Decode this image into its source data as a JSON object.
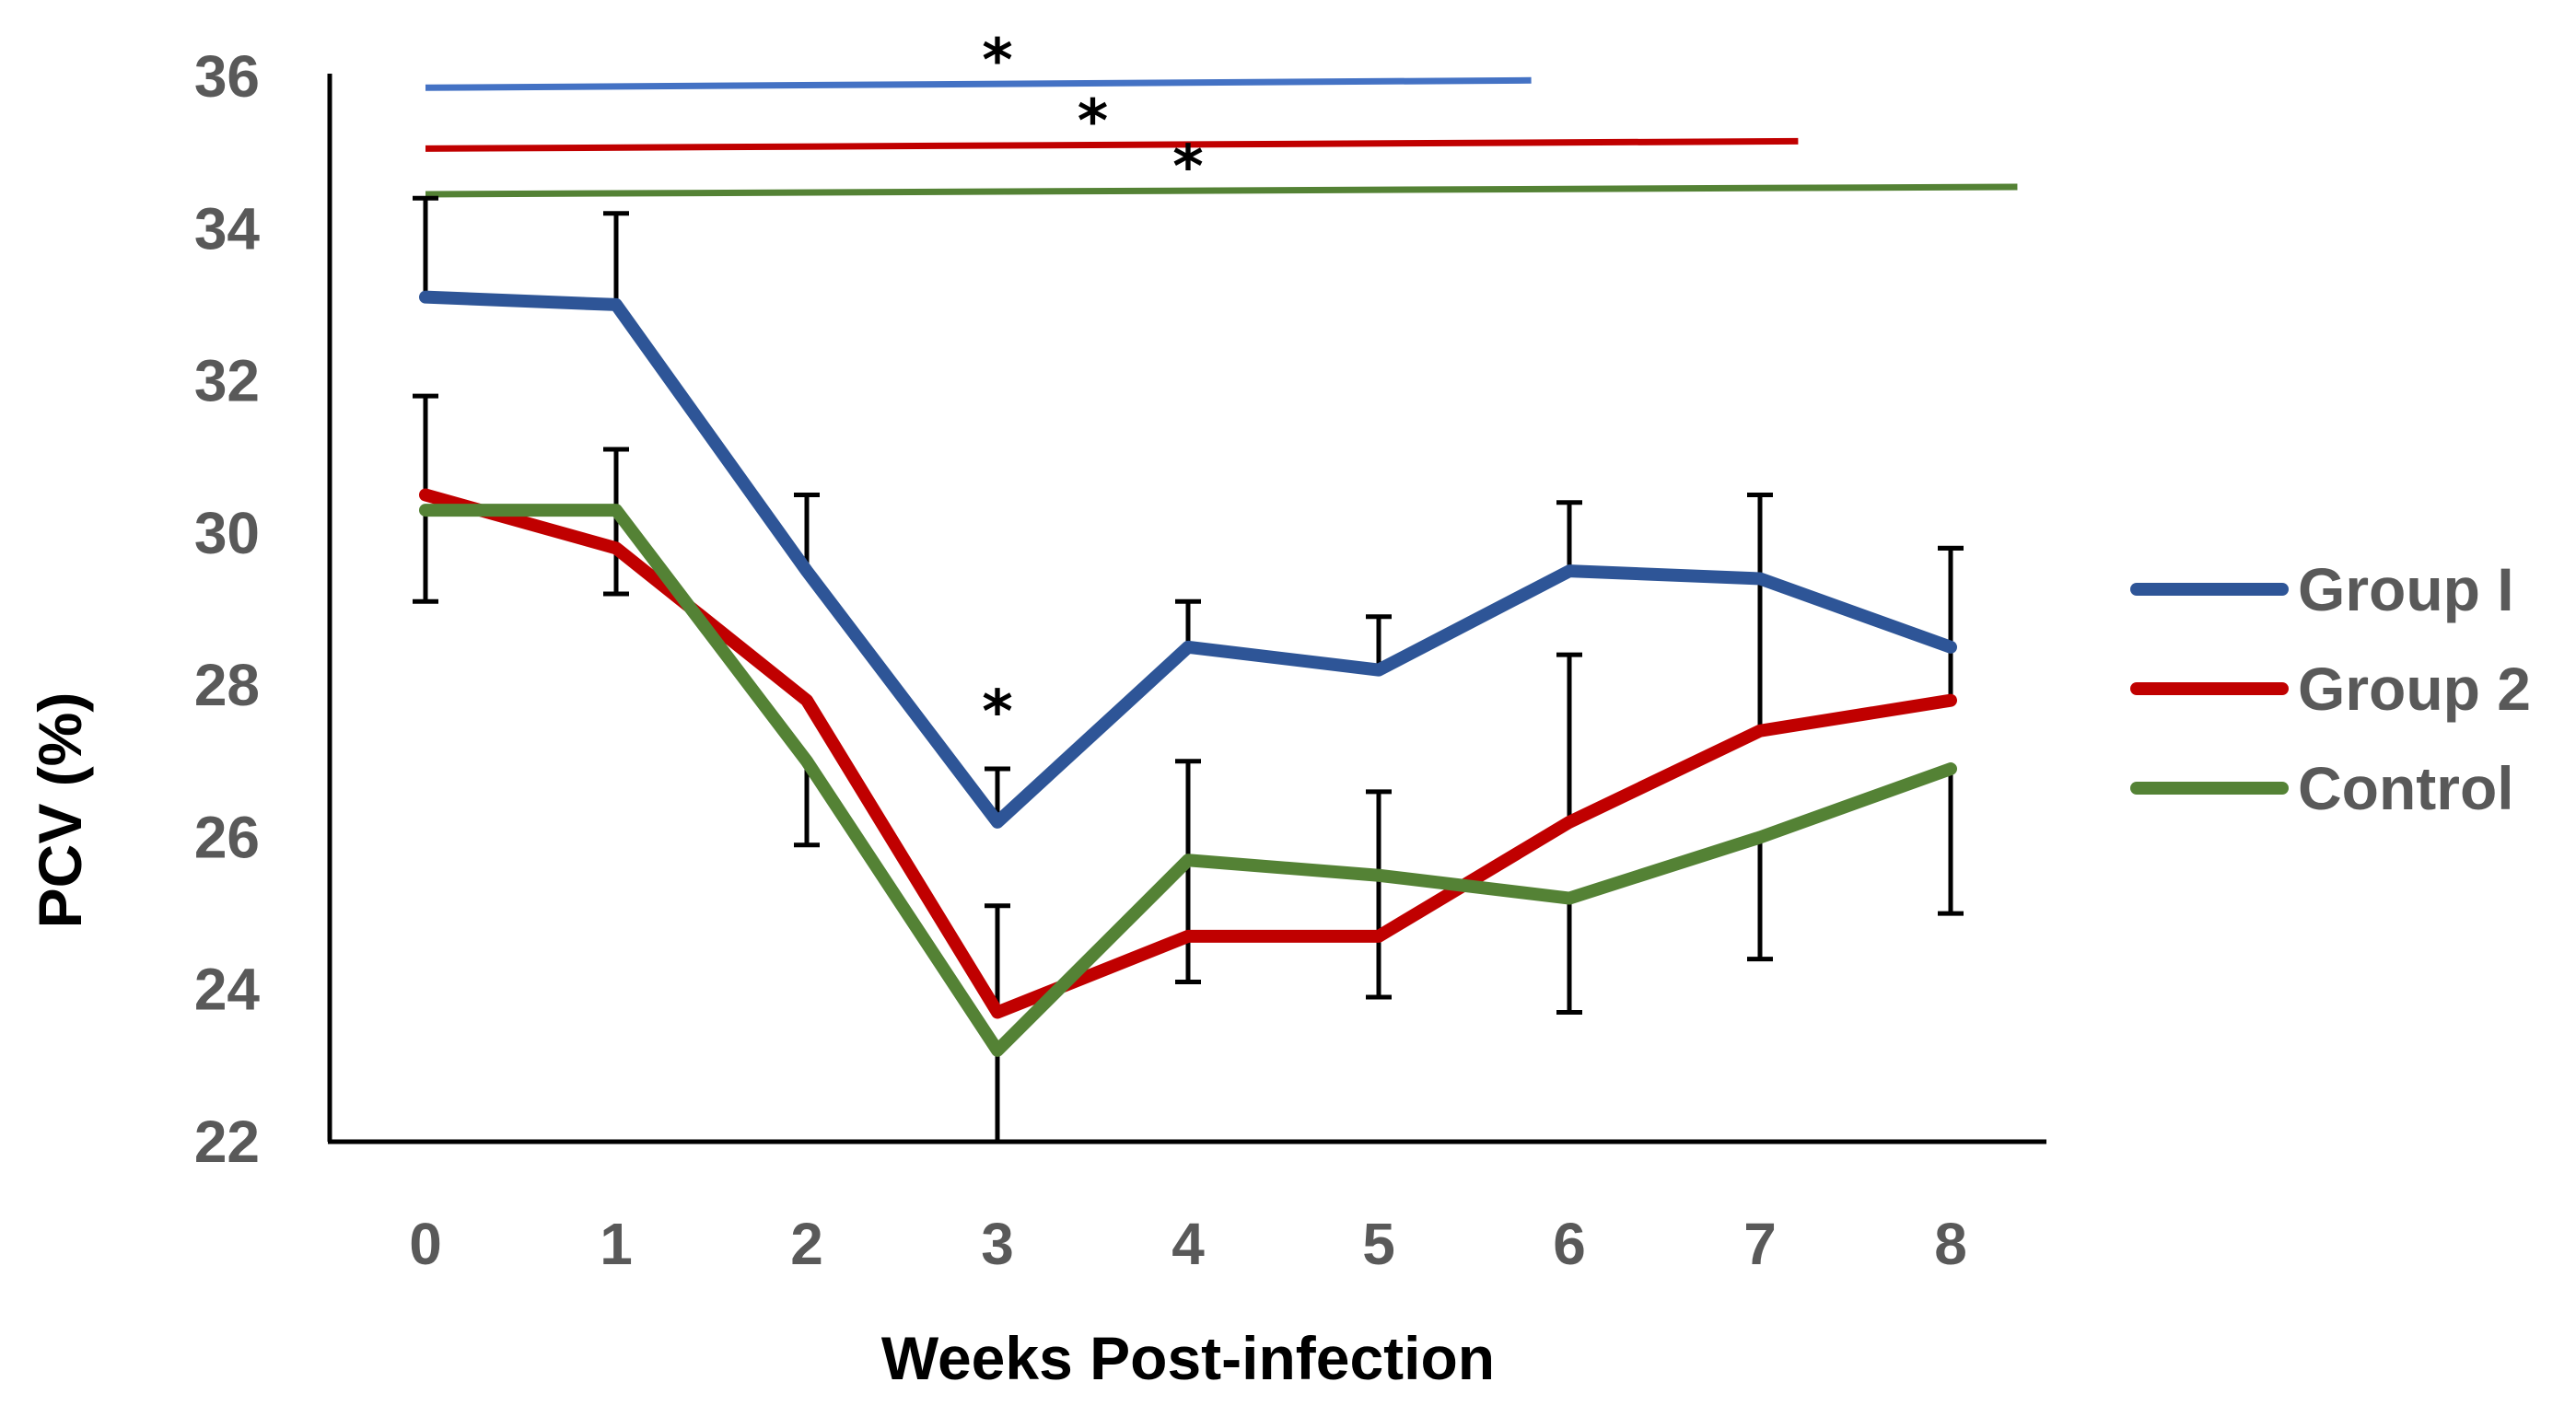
{
  "chart_data": {
    "type": "line",
    "title": "",
    "xlabel": "Weeks Post-infection",
    "ylabel": "PCV (%)",
    "x": [
      0,
      1,
      2,
      3,
      4,
      5,
      6,
      7,
      8
    ],
    "x_tick_labels": [
      "0",
      "1",
      "2",
      "3",
      "4",
      "5",
      "6",
      "7",
      "8"
    ],
    "ylim": [
      22,
      36
    ],
    "y_ticks": [
      22,
      24,
      26,
      28,
      30,
      32,
      34,
      36
    ],
    "y_tick_labels": [
      "22",
      "24",
      "26",
      "28",
      "30",
      "32",
      "34",
      "36"
    ],
    "grid": false,
    "legend_position": "right",
    "series": [
      {
        "name": "Group I",
        "color": "#2E5597",
        "values": [
          33.1,
          33.0,
          29.5,
          26.2,
          28.5,
          28.2,
          29.5,
          29.4,
          28.5
        ],
        "error_up": [
          1.3,
          1.2,
          1.0,
          0.7,
          0.6,
          0.7,
          0.9,
          1.1,
          1.3
        ]
      },
      {
        "name": "Group 2",
        "color": "#C00000",
        "values": [
          30.5,
          29.8,
          27.8,
          23.7,
          24.7,
          24.7,
          26.2,
          27.4,
          27.8
        ],
        "error_up": [
          1.3,
          1.3,
          0,
          1.4,
          2.3,
          1.9,
          2.2,
          3.1,
          2.0
        ]
      },
      {
        "name": "Control",
        "color": "#548235",
        "values": [
          30.3,
          30.3,
          27.0,
          23.2,
          25.7,
          25.5,
          25.2,
          26.0,
          26.9
        ],
        "error_down": [
          1.2,
          1.1,
          1.1,
          1.2,
          1.6,
          1.6,
          1.5,
          1.6,
          1.9
        ]
      }
    ],
    "significance_lines": [
      {
        "series": "Group I",
        "color": "#4472C4",
        "y": 35.9,
        "x_from": 0,
        "x_to": 5.8,
        "marker": "*",
        "marker_x": 3
      },
      {
        "series": "Group 2",
        "color": "#C00000",
        "y": 35.1,
        "x_from": 0,
        "x_to": 7.2,
        "marker": "*",
        "marker_x": 3.5
      },
      {
        "series": "Control",
        "color": "#548235",
        "y": 34.5,
        "x_from": 0,
        "x_to": 8.35,
        "marker": "*",
        "marker_x": 4
      }
    ],
    "annotations": [
      {
        "text": "*",
        "x": 3,
        "y": 26.9
      }
    ]
  }
}
